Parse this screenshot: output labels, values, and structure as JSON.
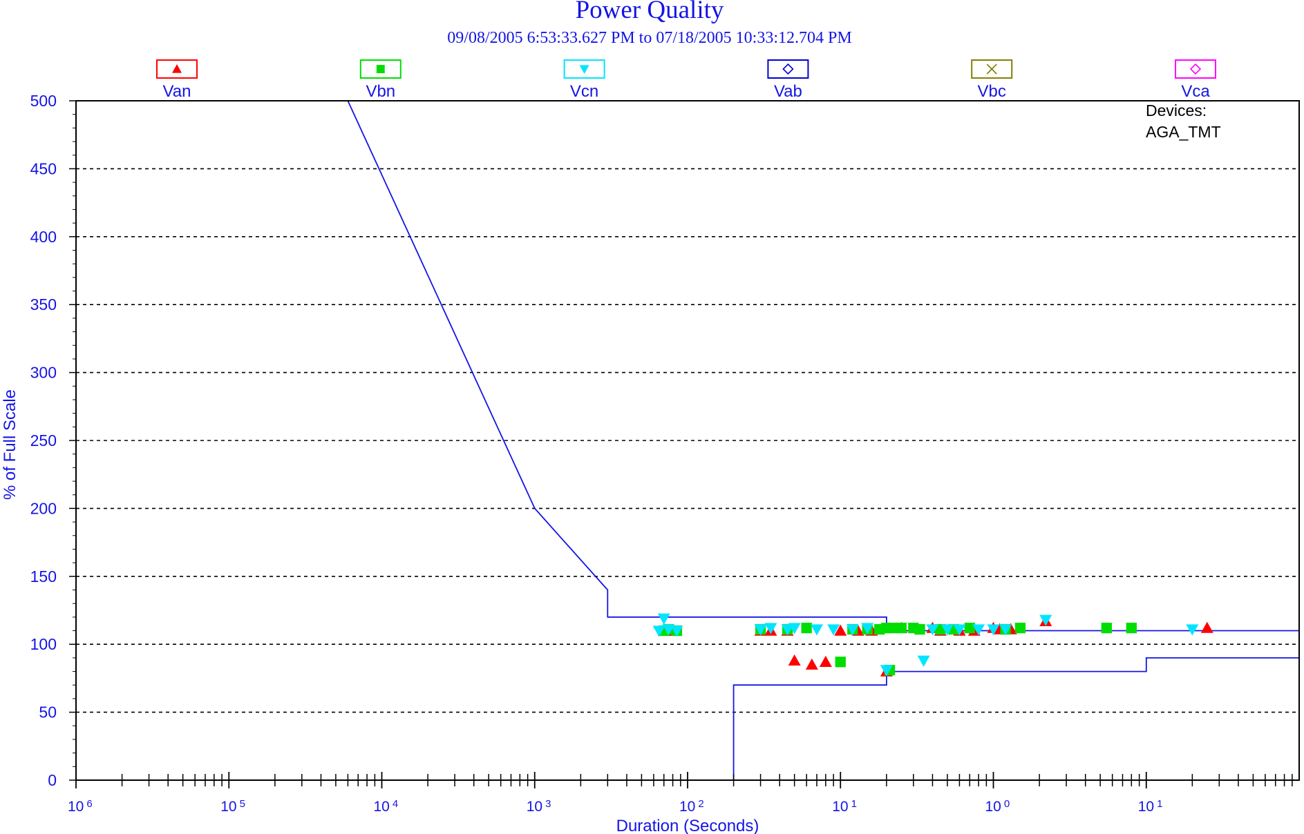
{
  "chart_data": {
    "type": "scatter",
    "title": "Power Quality",
    "subtitle": "09/08/2005 6:53:33.627 PM to 07/18/2005 10:33:12.704 PM",
    "xlabel": "Duration (Seconds)",
    "ylabel": "% of Full Scale",
    "x_scale": "log",
    "xlim": [
      1e-06,
      100.0
    ],
    "ylim": [
      0,
      500
    ],
    "yticks": [
      0,
      50,
      100,
      150,
      200,
      250,
      300,
      350,
      400,
      450,
      500
    ],
    "ytick_labels": [
      "0",
      "50",
      "100",
      "150",
      "200",
      "250",
      "300",
      "350",
      "400",
      "450",
      "500"
    ],
    "xtick_decades": [
      -6,
      -5,
      -4,
      -3,
      -2,
      -1,
      0,
      1
    ],
    "xtick_labels": [
      {
        "base": "10",
        "exp": "6"
      },
      {
        "base": "10",
        "exp": "5"
      },
      {
        "base": "10",
        "exp": "4"
      },
      {
        "base": "10",
        "exp": "3"
      },
      {
        "base": "10",
        "exp": "2"
      },
      {
        "base": "10",
        "exp": "1"
      },
      {
        "base": "10",
        "exp": "0"
      },
      {
        "base": "10",
        "exp": "1"
      }
    ],
    "grid": true,
    "legend_position": "top",
    "annotation": {
      "label": "Devices:",
      "value": "AGA_TMT"
    },
    "legend": [
      {
        "name": "Van",
        "color": "#ff0000",
        "marker": "triangle-up"
      },
      {
        "name": "Vbn",
        "color": "#00dd00",
        "marker": "square"
      },
      {
        "name": "Vcn",
        "color": "#00e5ff",
        "marker": "triangle-down"
      },
      {
        "name": "Vab",
        "color": "#0000cc",
        "marker": "diamond"
      },
      {
        "name": "Vbc",
        "color": "#808000",
        "marker": "x"
      },
      {
        "name": "Vca",
        "color": "#ff00ff",
        "marker": "diamond"
      }
    ],
    "curves": [
      {
        "name": "upper-limit",
        "color": "#1414e6",
        "points": [
          [
            6e-05,
            500
          ],
          [
            0.001,
            200
          ],
          [
            0.003,
            140
          ],
          [
            0.003,
            120
          ],
          [
            0.2,
            120
          ],
          [
            0.2,
            110
          ],
          [
            100,
            110
          ]
        ]
      },
      {
        "name": "lower-limit",
        "color": "#1414e6",
        "points": [
          [
            0.02,
            0
          ],
          [
            0.02,
            70
          ],
          [
            0.2,
            70
          ],
          [
            0.2,
            80
          ],
          [
            10,
            80
          ],
          [
            10,
            90
          ],
          [
            100,
            90
          ]
        ]
      }
    ],
    "series": [
      {
        "name": "Van",
        "color": "#ff0000",
        "marker": "triangle-up",
        "points": [
          [
            0.007,
            110
          ],
          [
            0.0075,
            110
          ],
          [
            0.008,
            110
          ],
          [
            0.03,
            110
          ],
          [
            0.035,
            110
          ],
          [
            0.045,
            110
          ],
          [
            0.05,
            88
          ],
          [
            0.065,
            85
          ],
          [
            0.08,
            87
          ],
          [
            0.1,
            110
          ],
          [
            0.13,
            110
          ],
          [
            0.16,
            110
          ],
          [
            0.25,
            112
          ],
          [
            0.4,
            112
          ],
          [
            0.45,
            110
          ],
          [
            0.6,
            110
          ],
          [
            0.75,
            110
          ],
          [
            0.2,
            80
          ],
          [
            1.0,
            112
          ],
          [
            1.1,
            111
          ],
          [
            1.3,
            111
          ],
          [
            2.2,
            117
          ],
          [
            25,
            112
          ]
        ]
      },
      {
        "name": "Vbn",
        "color": "#00dd00",
        "marker": "square",
        "points": [
          [
            0.007,
            110
          ],
          [
            0.0075,
            111
          ],
          [
            0.0085,
            110
          ],
          [
            0.03,
            111
          ],
          [
            0.045,
            111
          ],
          [
            0.06,
            112
          ],
          [
            0.1,
            87
          ],
          [
            0.12,
            111
          ],
          [
            0.15,
            111
          ],
          [
            0.18,
            111
          ],
          [
            0.2,
            112
          ],
          [
            0.22,
            112
          ],
          [
            0.25,
            112
          ],
          [
            0.3,
            112
          ],
          [
            0.33,
            111
          ],
          [
            0.45,
            111
          ],
          [
            0.55,
            111
          ],
          [
            0.7,
            112
          ],
          [
            0.21,
            81
          ],
          [
            1.2,
            111
          ],
          [
            1.5,
            112
          ],
          [
            5.5,
            112
          ],
          [
            8,
            112
          ]
        ]
      },
      {
        "name": "Vcn",
        "color": "#00e5ff",
        "marker": "triangle-down",
        "points": [
          [
            0.0065,
            110
          ],
          [
            0.007,
            119
          ],
          [
            0.0075,
            111
          ],
          [
            0.0085,
            110
          ],
          [
            0.03,
            111
          ],
          [
            0.035,
            112
          ],
          [
            0.045,
            111
          ],
          [
            0.05,
            112
          ],
          [
            0.07,
            111
          ],
          [
            0.09,
            111
          ],
          [
            0.12,
            111
          ],
          [
            0.15,
            112
          ],
          [
            0.35,
            88
          ],
          [
            0.4,
            111
          ],
          [
            0.5,
            111
          ],
          [
            0.6,
            111
          ],
          [
            0.8,
            111
          ],
          [
            0.2,
            81
          ],
          [
            1.0,
            111
          ],
          [
            1.2,
            111
          ],
          [
            2.2,
            118
          ],
          [
            20,
            111
          ]
        ]
      }
    ]
  }
}
